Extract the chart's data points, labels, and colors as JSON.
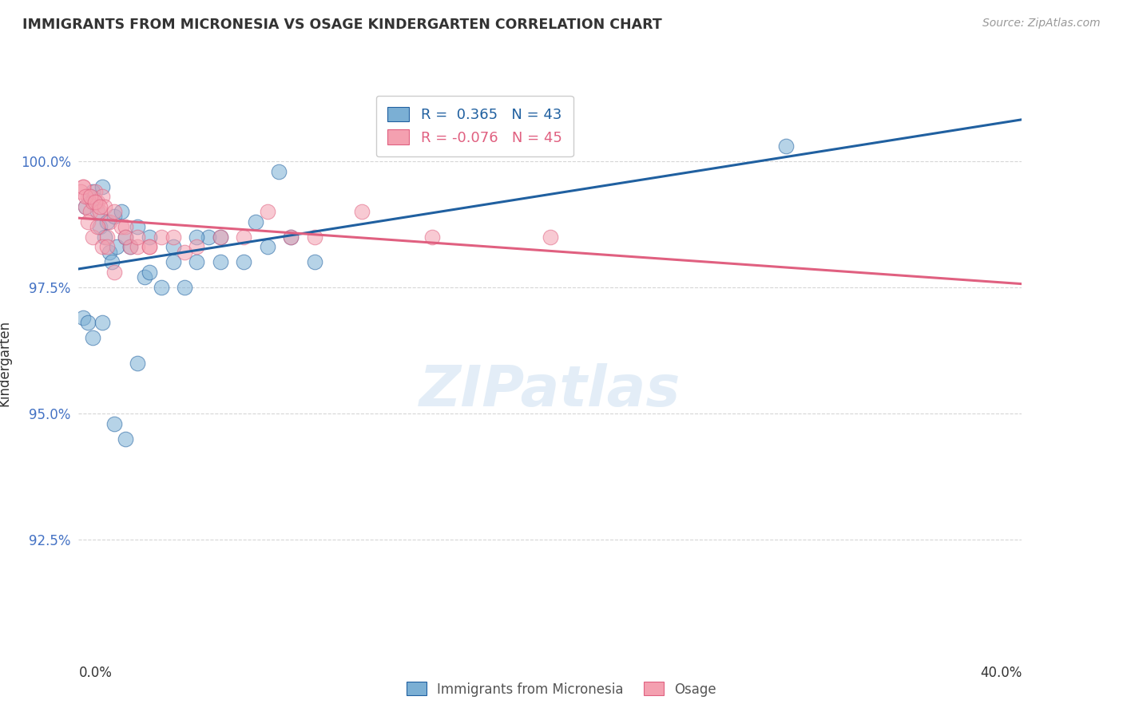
{
  "title": "IMMIGRANTS FROM MICRONESIA VS OSAGE KINDERGARTEN CORRELATION CHART",
  "source": "Source: ZipAtlas.com",
  "ylabel": "Kindergarten",
  "yticks": [
    92.5,
    95.0,
    97.5,
    100.0
  ],
  "ytick_labels": [
    "92.5%",
    "95.0%",
    "97.5%",
    "100.0%"
  ],
  "xmin": 0.0,
  "xmax": 40.0,
  "ymin": 90.5,
  "ymax": 101.5,
  "blue_R": 0.365,
  "blue_N": 43,
  "pink_R": -0.076,
  "pink_N": 45,
  "blue_color": "#7bafd4",
  "pink_color": "#f4a0b0",
  "blue_line_color": "#2060a0",
  "pink_line_color": "#e06080",
  "legend_label_blue": "Immigrants from Micronesia",
  "legend_label_pink": "Osage",
  "watermark": "ZIPatlas",
  "blue_x": [
    0.3,
    0.5,
    0.6,
    0.7,
    0.8,
    0.9,
    1.0,
    1.1,
    1.2,
    1.3,
    1.4,
    1.5,
    1.6,
    1.8,
    2.0,
    2.2,
    2.5,
    2.8,
    3.0,
    3.5,
    4.0,
    4.5,
    5.0,
    5.5,
    6.0,
    7.0,
    8.0,
    0.2,
    0.4,
    0.6,
    1.0,
    1.5,
    2.0,
    2.5,
    3.0,
    4.0,
    5.0,
    6.0,
    7.5,
    8.5,
    9.0,
    10.0,
    30.0
  ],
  "blue_y": [
    99.1,
    99.3,
    99.4,
    99.2,
    99.0,
    98.7,
    99.5,
    98.5,
    98.8,
    98.2,
    98.0,
    98.9,
    98.3,
    99.0,
    98.5,
    98.3,
    98.7,
    97.7,
    97.8,
    97.5,
    98.0,
    97.5,
    98.0,
    98.5,
    98.0,
    98.0,
    98.3,
    96.9,
    96.8,
    96.5,
    96.8,
    94.8,
    94.5,
    96.0,
    98.5,
    98.3,
    98.5,
    98.5,
    98.8,
    99.8,
    98.5,
    98.0,
    100.3
  ],
  "pink_x": [
    0.2,
    0.3,
    0.4,
    0.5,
    0.6,
    0.7,
    0.8,
    0.9,
    1.0,
    1.1,
    1.2,
    1.3,
    1.5,
    1.8,
    2.0,
    2.2,
    2.5,
    3.0,
    3.5,
    4.0,
    4.5,
    5.0,
    6.0,
    7.0,
    8.0,
    9.0,
    10.0,
    12.0,
    15.0,
    20.0,
    0.1,
    0.2,
    0.3,
    0.4,
    0.5,
    0.6,
    0.7,
    0.8,
    0.9,
    1.0,
    1.2,
    1.5,
    2.0,
    2.5,
    3.0
  ],
  "pink_y": [
    99.5,
    99.1,
    99.3,
    99.0,
    99.2,
    99.4,
    99.2,
    99.0,
    99.3,
    99.1,
    98.5,
    98.8,
    99.0,
    98.7,
    98.7,
    98.3,
    98.3,
    98.3,
    98.5,
    98.5,
    98.2,
    98.3,
    98.5,
    98.5,
    99.0,
    98.5,
    98.5,
    99.0,
    98.5,
    98.5,
    99.4,
    99.5,
    99.3,
    98.8,
    99.3,
    98.5,
    99.2,
    98.7,
    99.1,
    98.3,
    98.3,
    97.8,
    98.5,
    98.5,
    98.3
  ]
}
